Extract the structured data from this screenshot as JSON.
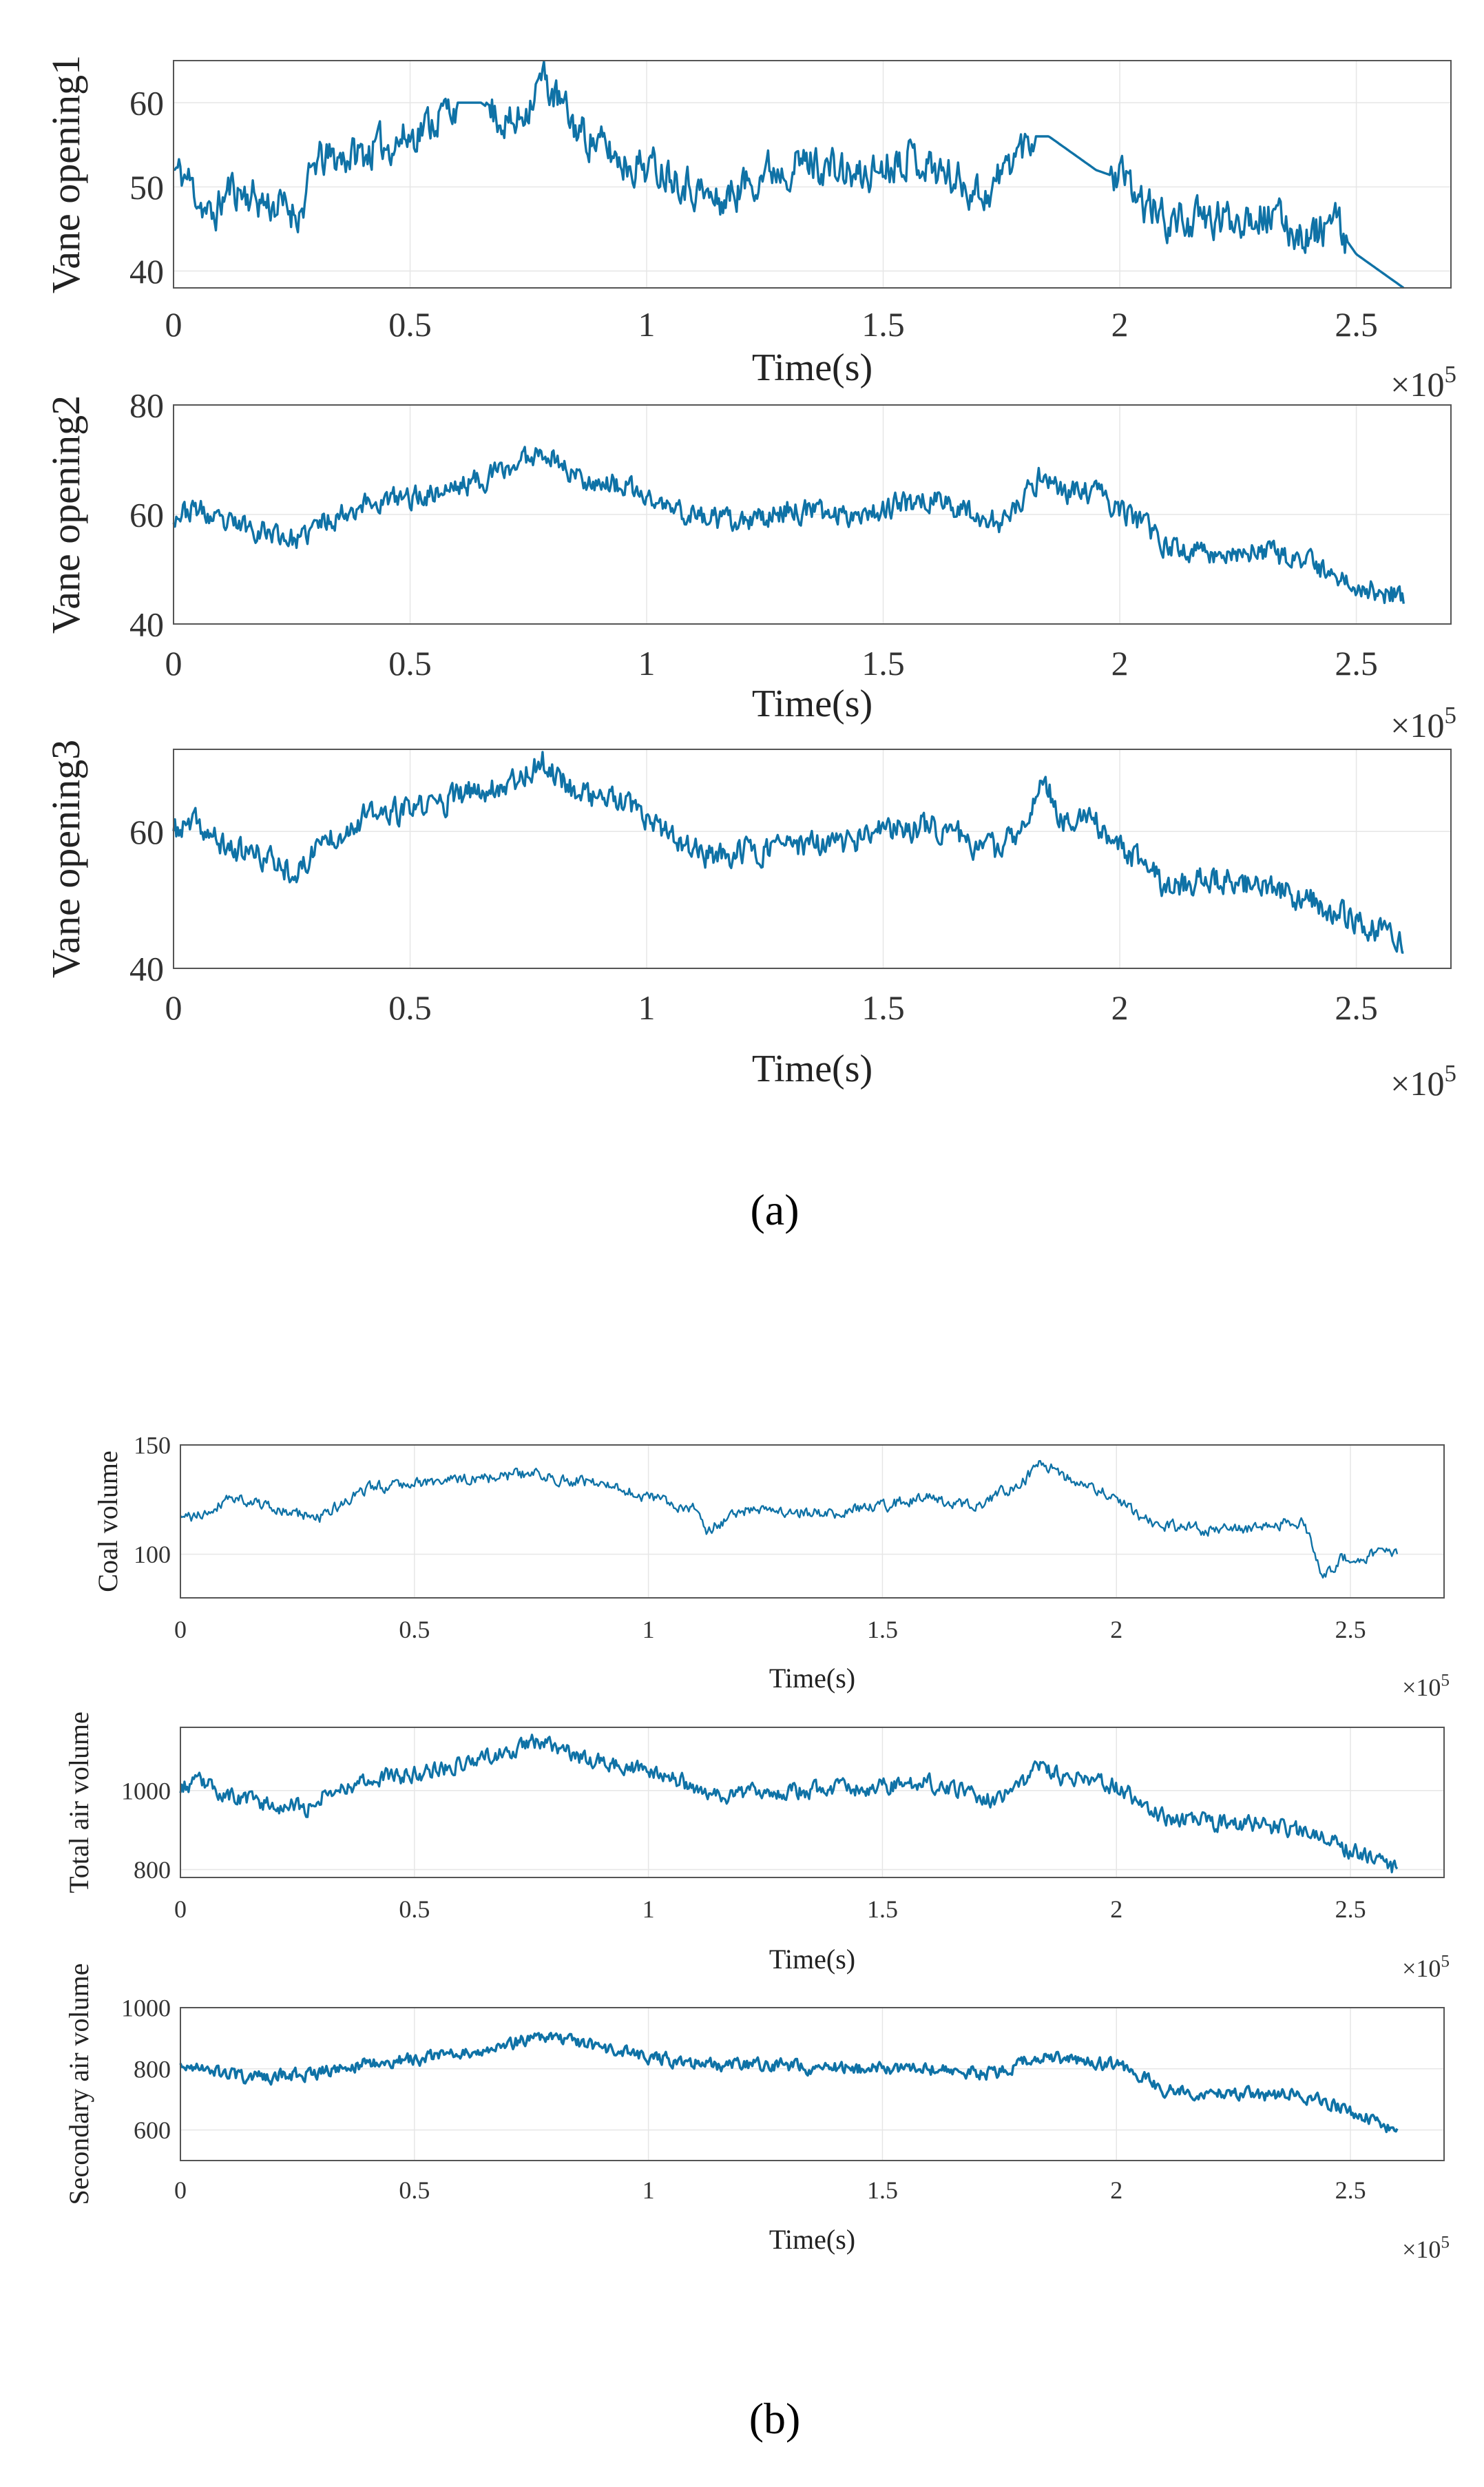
{
  "figure": {
    "caption_a": "(a)",
    "caption_b": "(b)",
    "line_color": "#0f72a6",
    "axis_color": "#555555",
    "grid_color": "#e6e6e6"
  },
  "chart_data": [
    {
      "id": "vane1",
      "type": "line",
      "group": "a",
      "title": "",
      "xlabel": "Time(s)",
      "ylabel": "Vane opening1",
      "x_multiplier": "×10",
      "x_exponent": "5",
      "xlim": [
        0,
        2.7
      ],
      "ylim": [
        38,
        65
      ],
      "xticks": [
        0,
        0.5,
        1,
        1.5,
        2,
        2.5
      ],
      "yticks": [
        40,
        50,
        60
      ],
      "noise": 2.6,
      "seed": 11,
      "step_mode": true,
      "series": [
        {
          "name": "Vane opening1",
          "x": [
            0,
            0.03,
            0.08,
            0.12,
            0.2,
            0.27,
            0.3,
            0.4,
            0.5,
            0.6,
            0.65,
            0.72,
            0.78,
            0.85,
            0.95,
            1.05,
            1.15,
            1.25,
            1.35,
            1.45,
            1.55,
            1.65,
            1.72,
            1.78,
            1.82,
            1.85,
            1.9,
            1.95,
            2.0,
            2.05,
            2.1,
            2.2,
            2.3,
            2.4,
            2.45,
            2.5,
            2.55,
            2.6
          ],
          "values": [
            52,
            51,
            46,
            50,
            48,
            47,
            53,
            54,
            56,
            60,
            60,
            57,
            63,
            57,
            53,
            52,
            48,
            52,
            53,
            51,
            54,
            51,
            49,
            54,
            56,
            56,
            54,
            52,
            51,
            48,
            46,
            46,
            47,
            44,
            46,
            42,
            40,
            38
          ]
        }
      ]
    },
    {
      "id": "vane2",
      "type": "line",
      "group": "a",
      "title": "",
      "xlabel": "Time(s)",
      "ylabel": "Vane opening2",
      "x_multiplier": "×10",
      "x_exponent": "5",
      "xlim": [
        0,
        2.7
      ],
      "ylim": [
        40,
        80
      ],
      "xticks": [
        0,
        0.5,
        1,
        1.5,
        2,
        2.5
      ],
      "yticks": [
        40,
        60,
        80
      ],
      "noise": 2.4,
      "seed": 23,
      "step_mode": false,
      "series": [
        {
          "name": "Vane opening2",
          "x": [
            0,
            0.05,
            0.1,
            0.15,
            0.2,
            0.27,
            0.3,
            0.4,
            0.5,
            0.6,
            0.7,
            0.78,
            0.85,
            0.95,
            1.05,
            1.1,
            1.2,
            1.3,
            1.4,
            1.5,
            1.6,
            1.7,
            1.75,
            1.8,
            1.84,
            1.88,
            1.95,
            2.0,
            2.05,
            2.1,
            2.2,
            2.3,
            2.4,
            2.5,
            2.6
          ],
          "values": [
            60,
            61,
            58,
            58,
            57,
            55,
            58,
            62,
            63,
            65,
            68,
            72,
            67,
            65,
            61,
            60,
            58,
            61,
            60,
            61,
            63,
            60,
            58,
            63,
            68,
            64,
            64,
            61,
            58,
            54,
            53,
            53,
            51,
            47,
            45
          ]
        }
      ]
    },
    {
      "id": "vane3",
      "type": "line",
      "group": "a",
      "title": "",
      "xlabel": "Time(s)",
      "ylabel": "Vane opening3",
      "x_multiplier": "×10",
      "x_exponent": "5",
      "xlim": [
        0,
        2.7
      ],
      "ylim": [
        40,
        72
      ],
      "xticks": [
        0,
        0.5,
        1,
        1.5,
        2,
        2.5
      ],
      "yticks": [
        40,
        60
      ],
      "noise": 2.2,
      "seed": 37,
      "step_mode": false,
      "series": [
        {
          "name": "Vane opening3",
          "x": [
            0,
            0.05,
            0.1,
            0.15,
            0.2,
            0.27,
            0.3,
            0.4,
            0.5,
            0.6,
            0.7,
            0.78,
            0.85,
            0.95,
            1.05,
            1.15,
            1.2,
            1.3,
            1.4,
            1.5,
            1.6,
            1.7,
            1.75,
            1.8,
            1.84,
            1.88,
            1.95,
            2.0,
            2.05,
            2.1,
            2.2,
            2.3,
            2.4,
            2.5,
            2.6
          ],
          "values": [
            60,
            61,
            58,
            57,
            56,
            54,
            58,
            62,
            63,
            65,
            67,
            70,
            66,
            64,
            59,
            56,
            57,
            58,
            58,
            60,
            61,
            58,
            57,
            62,
            67,
            62,
            61,
            58,
            55,
            52,
            53,
            52,
            50,
            47,
            44
          ]
        }
      ]
    },
    {
      "id": "coal",
      "type": "line",
      "group": "b",
      "title": "",
      "xlabel": "Time(s)",
      "ylabel": "Coal volume",
      "x_multiplier": "×10",
      "x_exponent": "5",
      "xlim": [
        0,
        2.7
      ],
      "ylim": [
        80,
        150
      ],
      "xticks": [
        0,
        0.5,
        1,
        1.5,
        2,
        2.5
      ],
      "yticks": [
        100,
        150
      ],
      "noise": 3.0,
      "seed": 41,
      "step_mode": false,
      "series": [
        {
          "name": "Coal volume",
          "x": [
            0,
            0.05,
            0.1,
            0.15,
            0.2,
            0.3,
            0.4,
            0.48,
            0.55,
            0.65,
            0.75,
            0.8,
            0.9,
            1.0,
            1.1,
            1.12,
            1.2,
            1.3,
            1.4,
            1.5,
            1.6,
            1.7,
            1.8,
            1.84,
            1.9,
            2.0,
            2.05,
            2.1,
            2.2,
            2.3,
            2.4,
            2.42,
            2.44,
            2.48,
            2.55,
            2.6
          ],
          "values": [
            116,
            118,
            126,
            125,
            120,
            117,
            130,
            133,
            133,
            135,
            137,
            135,
            132,
            126,
            120,
            110,
            120,
            119,
            119,
            122,
            126,
            122,
            133,
            142,
            134,
            126,
            116,
            113,
            111,
            112,
            115,
            105,
            88,
            98,
            100,
            100
          ]
        }
      ]
    },
    {
      "id": "total_air",
      "type": "line",
      "group": "b",
      "title": "",
      "xlabel": "Time(s)",
      "ylabel": "Total air volume",
      "x_multiplier": "×10",
      "x_exponent": "5",
      "xlim": [
        0,
        2.7
      ],
      "ylim": [
        780,
        1160
      ],
      "xticks": [
        0,
        0.5,
        1,
        1.5,
        2,
        2.5
      ],
      "yticks": [
        800,
        1000
      ],
      "noise": 24,
      "seed": 53,
      "step_mode": false,
      "series": [
        {
          "name": "Total air volume",
          "x": [
            0,
            0.05,
            0.1,
            0.15,
            0.2,
            0.27,
            0.3,
            0.4,
            0.5,
            0.6,
            0.7,
            0.78,
            0.85,
            0.95,
            1.05,
            1.15,
            1.2,
            1.3,
            1.4,
            1.5,
            1.6,
            1.7,
            1.75,
            1.8,
            1.84,
            1.88,
            1.95,
            2.0,
            2.05,
            2.1,
            2.2,
            2.3,
            2.4,
            2.5,
            2.6
          ],
          "values": [
            1010,
            1020,
            985,
            975,
            965,
            955,
            990,
            1030,
            1040,
            1070,
            1100,
            1130,
            1080,
            1060,
            1030,
            985,
            995,
            1000,
            1005,
            1010,
            1020,
            990,
            975,
            1020,
            1070,
            1035,
            1030,
            1010,
            975,
            935,
            920,
            915,
            895,
            850,
            800
          ]
        }
      ]
    },
    {
      "id": "secondary_air",
      "type": "line",
      "group": "b",
      "title": "",
      "xlabel": "Time(s)",
      "ylabel": "Secondary air volume",
      "x_multiplier": "×10",
      "x_exponent": "5",
      "xlim": [
        0,
        2.7
      ],
      "ylim": [
        500,
        1000
      ],
      "xticks": [
        0,
        0.5,
        1,
        1.5,
        2,
        2.5
      ],
      "yticks": [
        600,
        800,
        1000
      ],
      "noise": 24,
      "seed": 67,
      "step_mode": false,
      "series": [
        {
          "name": "Secondary air volume",
          "x": [
            0,
            0.05,
            0.1,
            0.15,
            0.2,
            0.3,
            0.4,
            0.5,
            0.6,
            0.7,
            0.78,
            0.85,
            0.95,
            1.05,
            1.15,
            1.25,
            1.35,
            1.45,
            1.55,
            1.65,
            1.75,
            1.8,
            1.84,
            1.88,
            1.95,
            2.0,
            2.05,
            2.1,
            2.2,
            2.3,
            2.4,
            2.45,
            2.5,
            2.6
          ],
          "values": [
            800,
            810,
            780,
            770,
            775,
            790,
            820,
            830,
            850,
            880,
            910,
            880,
            850,
            830,
            810,
            815,
            805,
            800,
            805,
            795,
            785,
            820,
            850,
            830,
            825,
            810,
            780,
            735,
            720,
            715,
            715,
            690,
            660,
            600
          ]
        }
      ]
    }
  ]
}
